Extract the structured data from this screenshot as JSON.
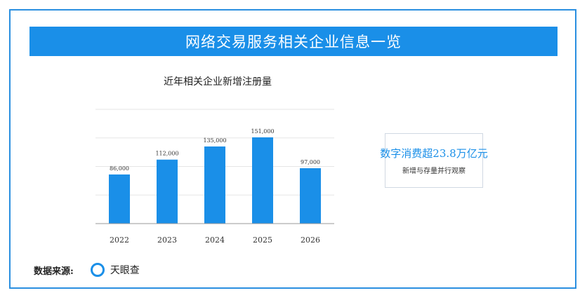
{
  "banner": {
    "title": "网络交易服务相关企业信息一览"
  },
  "chart_data": {
    "type": "bar",
    "title": "近年相关企业新增注册量",
    "categories": [
      "2022",
      "2023",
      "2024",
      "2025",
      "2026"
    ],
    "values": [
      86000,
      112000,
      135000,
      151000,
      97000
    ],
    "data_labels": [
      "86,000",
      "112,000",
      "135,000",
      "151,000",
      "97,000"
    ],
    "ylim": [
      0,
      200000
    ],
    "grid": true,
    "bar_color": "#1a8fe8"
  },
  "stat_card": {
    "value": "数字消费超23.8万亿元",
    "subtitle": "新增与存量并行观察"
  },
  "source": {
    "label": "数据来源:",
    "icon": "ring-icon",
    "name": "天眼查"
  },
  "colors": {
    "accent": "#1a8fe8",
    "frame": "#2a8fe0"
  }
}
